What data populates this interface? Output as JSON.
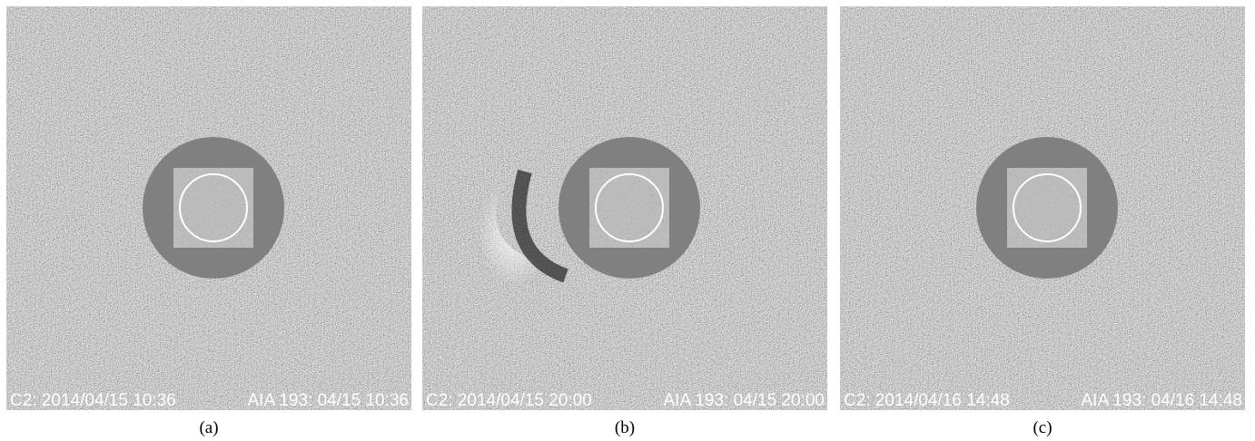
{
  "panels": [
    {
      "c2_label": "C2: 2014/04/15 10:36",
      "aia_label": "AIA 193: 04/15 10:36",
      "caption": "(a)"
    },
    {
      "c2_label": "C2: 2014/04/15 20:00",
      "aia_label": "AIA 193: 04/15 20:00",
      "caption": "(b)"
    },
    {
      "c2_label": "C2: 2014/04/16 14:48",
      "aia_label": "AIA 193: 04/16 14:48",
      "caption": "(c)"
    }
  ]
}
